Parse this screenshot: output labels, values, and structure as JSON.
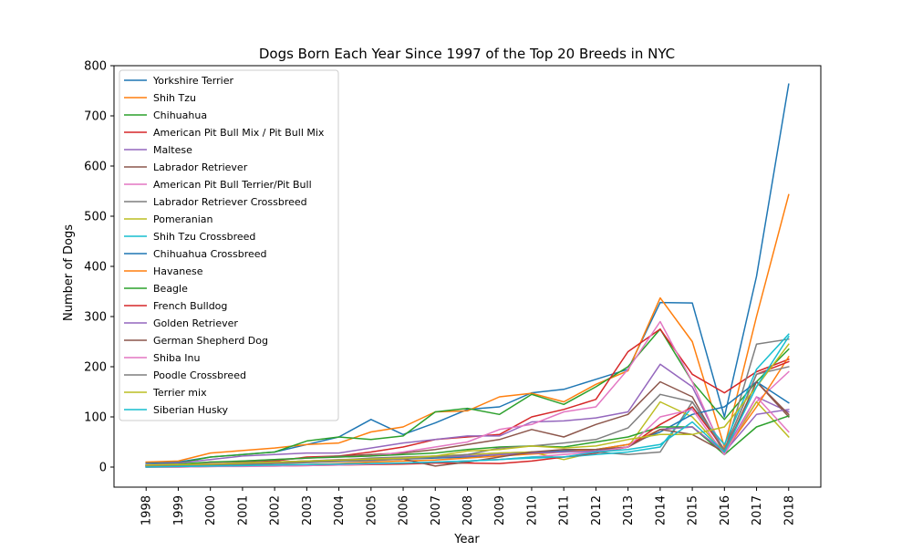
{
  "chart_data": {
    "type": "line",
    "title": "Dogs Born Each Year Since 1997 of the Top 20 Breeds in NYC",
    "xlabel": "Year",
    "ylabel": "Number of Dogs",
    "ylim": [
      -40,
      800
    ],
    "yticks": [
      0,
      100,
      200,
      300,
      400,
      500,
      600,
      700,
      800
    ],
    "x": [
      1998,
      1999,
      2000,
      2001,
      2002,
      2003,
      2004,
      2005,
      2006,
      2007,
      2008,
      2009,
      2010,
      2011,
      2012,
      2013,
      2014,
      2015,
      2016,
      2017,
      2018
    ],
    "grid": false,
    "legend_position": "upper-left",
    "series": [
      {
        "name": "Yorkshire Terrier",
        "color": "#1f77b4",
        "values": [
          8,
          10,
          20,
          25,
          30,
          45,
          60,
          95,
          65,
          88,
          115,
          120,
          148,
          155,
          175,
          195,
          328,
          327,
          100,
          380,
          763
        ]
      },
      {
        "name": "Shih Tzu",
        "color": "#ff7f0e",
        "values": [
          10,
          12,
          28,
          33,
          38,
          45,
          48,
          70,
          80,
          110,
          112,
          140,
          147,
          130,
          165,
          192,
          337,
          250,
          40,
          300,
          543
        ]
      },
      {
        "name": "Chihuahua",
        "color": "#2ca02c",
        "values": [
          5,
          8,
          20,
          25,
          30,
          52,
          60,
          55,
          62,
          110,
          117,
          105,
          145,
          125,
          160,
          200,
          275,
          170,
          95,
          170,
          235
        ]
      },
      {
        "name": "American Pit Bull Mix / Pit Bull Mix",
        "color": "#d62728",
        "values": [
          3,
          4,
          10,
          10,
          12,
          20,
          22,
          30,
          40,
          55,
          60,
          65,
          100,
          115,
          135,
          230,
          275,
          185,
          148,
          190,
          215
        ]
      },
      {
        "name": "Maltese",
        "color": "#9467bd",
        "values": [
          5,
          8,
          15,
          22,
          25,
          28,
          28,
          38,
          48,
          55,
          62,
          62,
          90,
          92,
          98,
          110,
          205,
          160,
          30,
          140,
          110
        ]
      },
      {
        "name": "Labrador Retriever",
        "color": "#8c564b",
        "values": [
          2,
          4,
          8,
          10,
          14,
          18,
          22,
          25,
          28,
          35,
          45,
          55,
          75,
          60,
          85,
          105,
          170,
          140,
          28,
          170,
          100
        ]
      },
      {
        "name": "American Pit Bull Terrier/Pit Bull",
        "color": "#e377c2",
        "values": [
          3,
          5,
          8,
          12,
          15,
          18,
          20,
          22,
          30,
          40,
          50,
          75,
          85,
          110,
          120,
          195,
          290,
          170,
          25,
          130,
          190
        ]
      },
      {
        "name": "Labrador Retriever Crossbreed",
        "color": "#7f7f7f",
        "values": [
          2,
          3,
          5,
          8,
          10,
          12,
          14,
          18,
          20,
          22,
          25,
          28,
          30,
          32,
          30,
          25,
          30,
          130,
          30,
          245,
          255
        ]
      },
      {
        "name": "Pomeranian",
        "color": "#bcbd22",
        "values": [
          3,
          4,
          6,
          8,
          10,
          12,
          14,
          16,
          18,
          22,
          25,
          28,
          30,
          15,
          30,
          40,
          130,
          100,
          30,
          130,
          60
        ]
      },
      {
        "name": "Shih Tzu Crossbreed",
        "color": "#17becf",
        "values": [
          1,
          2,
          3,
          4,
          4,
          5,
          6,
          7,
          8,
          10,
          12,
          15,
          18,
          20,
          25,
          30,
          40,
          120,
          45,
          195,
          265
        ]
      },
      {
        "name": "Chihuahua Crossbreed",
        "color": "#1f77b4",
        "values": [
          2,
          3,
          5,
          6,
          8,
          10,
          12,
          14,
          16,
          18,
          20,
          25,
          28,
          32,
          35,
          45,
          70,
          105,
          120,
          170,
          128
        ]
      },
      {
        "name": "Havanese",
        "color": "#ff7f0e",
        "values": [
          0,
          1,
          2,
          3,
          4,
          5,
          7,
          10,
          12,
          14,
          18,
          22,
          26,
          30,
          35,
          45,
          75,
          80,
          30,
          120,
          220
        ]
      },
      {
        "name": "Beagle",
        "color": "#2ca02c",
        "values": [
          4,
          6,
          10,
          12,
          15,
          18,
          20,
          22,
          25,
          28,
          35,
          40,
          42,
          40,
          50,
          60,
          80,
          80,
          25,
          80,
          102
        ]
      },
      {
        "name": "French Bulldog",
        "color": "#d62728",
        "values": [
          0,
          0,
          1,
          2,
          2,
          3,
          4,
          5,
          6,
          8,
          8,
          7,
          12,
          20,
          28,
          40,
          85,
          120,
          35,
          185,
          210
        ]
      },
      {
        "name": "Golden Retriever",
        "color": "#9467bd",
        "values": [
          3,
          4,
          6,
          8,
          10,
          12,
          15,
          16,
          18,
          20,
          22,
          25,
          28,
          30,
          32,
          40,
          75,
          80,
          30,
          105,
          115
        ]
      },
      {
        "name": "German Shepherd Dog",
        "color": "#8c564b",
        "values": [
          2,
          3,
          4,
          6,
          8,
          10,
          12,
          14,
          16,
          2,
          10,
          20,
          30,
          35,
          35,
          40,
          75,
          65,
          30,
          170,
          105
        ]
      },
      {
        "name": "Shiba Inu",
        "color": "#e377c2",
        "values": [
          0,
          0,
          1,
          1,
          2,
          3,
          4,
          6,
          8,
          10,
          12,
          15,
          20,
          25,
          30,
          40,
          100,
          115,
          25,
          140,
          70
        ]
      },
      {
        "name": "Poodle Crossbreed",
        "color": "#7f7f7f",
        "values": [
          1,
          2,
          3,
          5,
          7,
          9,
          11,
          13,
          16,
          20,
          25,
          38,
          42,
          48,
          55,
          78,
          145,
          130,
          35,
          185,
          200
        ]
      },
      {
        "name": "Terrier mix",
        "color": "#bcbd22",
        "values": [
          4,
          5,
          6,
          8,
          10,
          12,
          14,
          16,
          18,
          22,
          32,
          35,
          42,
          38,
          42,
          55,
          65,
          65,
          80,
          160,
          245
        ]
      },
      {
        "name": "Siberian Husky",
        "color": "#17becf",
        "values": [
          0,
          1,
          2,
          3,
          4,
          5,
          6,
          7,
          8,
          10,
          12,
          15,
          20,
          20,
          30,
          35,
          45,
          90,
          30,
          160,
          260
        ]
      }
    ]
  }
}
